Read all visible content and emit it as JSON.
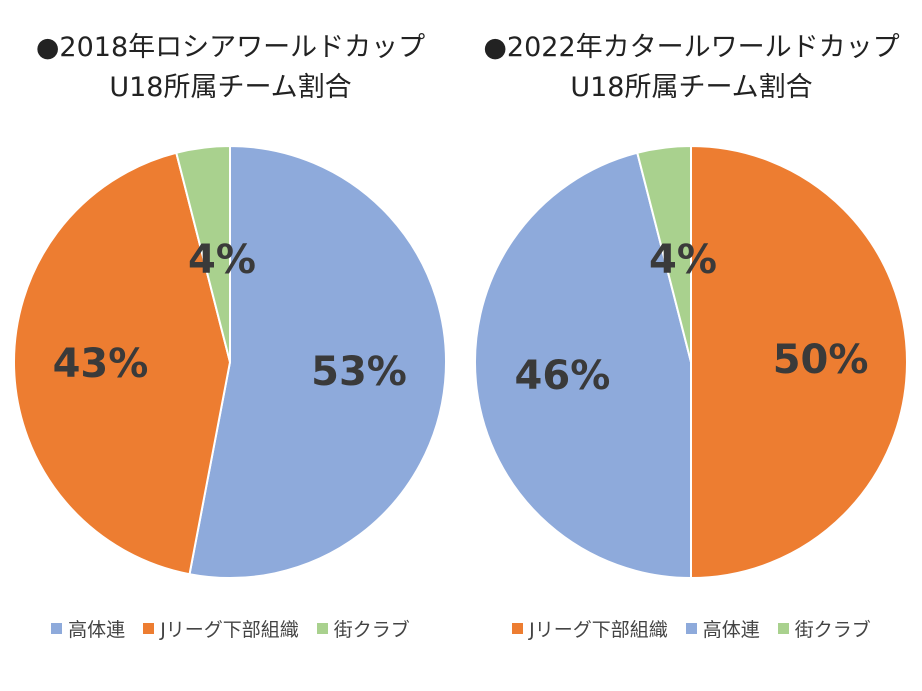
{
  "chart_data": [
    {
      "type": "pie",
      "title": "●2018年ロシアワールドカップ",
      "subtitle": "U18所属チーム割合",
      "series": [
        {
          "name": "高体連",
          "value": 53,
          "label": "53%",
          "color": "#8eaadb"
        },
        {
          "name": "Jリーグ下部組織",
          "value": 43,
          "label": "43%",
          "color": "#ed7d31"
        },
        {
          "name": "街クラブ",
          "value": 4,
          "label": "4%",
          "color": "#a9d18e"
        }
      ],
      "legend_position": "bottom"
    },
    {
      "type": "pie",
      "title": "●2022年カタールワールドカップ",
      "subtitle": "U18所属チーム割合",
      "series": [
        {
          "name": "Jリーグ下部組織",
          "value": 50,
          "label": "50%",
          "color": "#ed7d31"
        },
        {
          "name": "高体連",
          "value": 46,
          "label": "46%",
          "color": "#8eaadb"
        },
        {
          "name": "街クラブ",
          "value": 4,
          "label": "4%",
          "color": "#a9d18e"
        }
      ],
      "legend_position": "bottom"
    }
  ]
}
